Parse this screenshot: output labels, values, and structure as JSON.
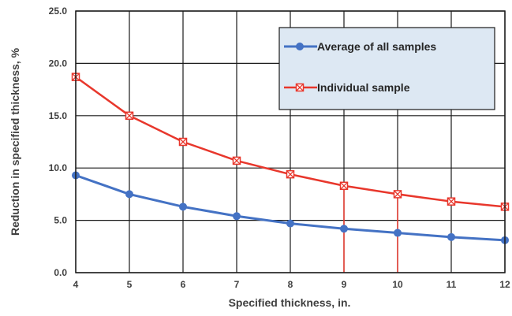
{
  "chart_data": {
    "type": "line",
    "xlabel": "Specified thickness, in.",
    "ylabel": "Reduction in specified thickness, %",
    "x": [
      4,
      5,
      6,
      7,
      8,
      9,
      10,
      11,
      12
    ],
    "xlim": [
      4,
      12
    ],
    "ylim": [
      0,
      25
    ],
    "y_ticks": [
      "0.0",
      "5.0",
      "10.0",
      "15.0",
      "20.0",
      "25.0"
    ],
    "x_ticks": [
      "4",
      "5",
      "6",
      "7",
      "8",
      "9",
      "10",
      "11",
      "12"
    ],
    "grid": true,
    "legend_position": "top-right",
    "series": [
      {
        "name": "Average of all samples",
        "color": "#4472C4",
        "marker": "circle",
        "values": [
          9.3,
          7.5,
          6.3,
          5.4,
          4.7,
          4.2,
          3.8,
          3.4,
          3.1
        ]
      },
      {
        "name": "Individual sample",
        "color": "#E8372C",
        "marker": "square-x",
        "values": [
          18.7,
          15.0,
          12.5,
          10.7,
          9.4,
          8.3,
          7.5,
          6.8,
          6.3
        ]
      }
    ],
    "reference_lines_x": [
      9,
      10
    ],
    "reference_line_color": "#E8372C",
    "legend_background": "#DDE8F3"
  }
}
